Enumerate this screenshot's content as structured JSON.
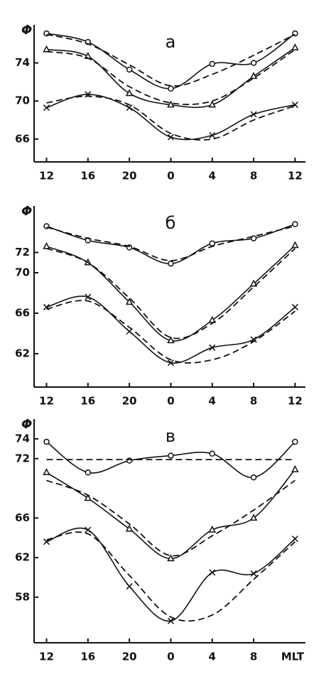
{
  "chart_data": [
    {
      "type": "line",
      "title": "a",
      "ylabel": "Φ'",
      "x": [
        12,
        16,
        20,
        24,
        28,
        32,
        36
      ],
      "xlim": [
        10.8,
        37
      ],
      "xticks": [
        12,
        16,
        20,
        {
          "value": 24,
          "label": "0"
        },
        {
          "value": 28,
          "label": "4"
        },
        {
          "value": 32,
          "label": "8"
        },
        {
          "value": 36,
          "label": "12"
        }
      ],
      "ylim": [
        63.6,
        78
      ],
      "yticks": [
        74,
        70,
        66
      ],
      "series": [
        {
          "color": "#111",
          "marker": "circle",
          "dashed": false,
          "values": [
            77.1,
            76.2,
            73.3,
            71.3,
            73.9,
            74.0,
            77.1
          ]
        },
        {
          "color": "#111",
          "marker": "triangle",
          "dashed": false,
          "values": [
            75.4,
            74.7,
            70.8,
            69.6,
            69.6,
            72.6,
            75.6
          ]
        },
        {
          "color": "#111",
          "marker": "cross",
          "dashed": false,
          "values": [
            69.3,
            70.7,
            69.3,
            66.2,
            66.4,
            68.6,
            69.6
          ]
        },
        {
          "color": "#111",
          "marker": "none",
          "dashed": true,
          "values": [
            77.0,
            76.0,
            73.8,
            71.6,
            72.8,
            74.8,
            77.0
          ]
        },
        {
          "color": "#111",
          "marker": "none",
          "dashed": true,
          "values": [
            75.2,
            74.5,
            71.5,
            69.8,
            70.0,
            72.4,
            75.4
          ]
        },
        {
          "color": "#111",
          "marker": "none",
          "dashed": true,
          "values": [
            69.8,
            70.5,
            69.6,
            66.6,
            66.0,
            68.0,
            69.5
          ]
        }
      ]
    },
    {
      "type": "line",
      "title": "б",
      "ylabel": "Φ'",
      "x": [
        12,
        16,
        20,
        24,
        28,
        32,
        36
      ],
      "xlim": [
        10.8,
        37
      ],
      "xticks": [
        12,
        16,
        20,
        {
          "value": 24,
          "label": "0"
        },
        {
          "value": 28,
          "label": "4"
        },
        {
          "value": 32,
          "label": "8"
        },
        {
          "value": 36,
          "label": "12"
        }
      ],
      "ylim": [
        58.7,
        76.6
      ],
      "yticks": [
        72,
        70,
        66,
        62
      ],
      "series": [
        {
          "color": "#111",
          "marker": "circle",
          "dashed": false,
          "values": [
            74.6,
            73.2,
            72.5,
            70.9,
            72.9,
            73.4,
            74.8
          ]
        },
        {
          "color": "#111",
          "marker": "triangle",
          "dashed": false,
          "values": [
            72.6,
            71.0,
            67.1,
            63.3,
            65.3,
            68.9,
            72.7
          ]
        },
        {
          "color": "#111",
          "marker": "cross",
          "dashed": false,
          "values": [
            66.6,
            67.6,
            64.2,
            61.1,
            62.6,
            63.4,
            66.6
          ]
        },
        {
          "color": "#111",
          "marker": "none",
          "dashed": true,
          "values": [
            74.5,
            73.4,
            72.6,
            71.2,
            72.6,
            73.6,
            74.6
          ]
        },
        {
          "color": "#111",
          "marker": "none",
          "dashed": true,
          "values": [
            72.4,
            71.0,
            67.5,
            63.6,
            65.0,
            68.6,
            72.4
          ]
        },
        {
          "color": "#111",
          "marker": "none",
          "dashed": true,
          "values": [
            66.4,
            67.2,
            64.6,
            61.4,
            61.4,
            63.2,
            66.2
          ]
        }
      ]
    },
    {
      "type": "line",
      "title": "в",
      "ylabel": "Φ'",
      "xlabel": "MLT",
      "x": [
        12,
        16,
        20,
        24,
        28,
        32,
        36
      ],
      "xlim": [
        10.8,
        37
      ],
      "xticks": [
        12,
        16,
        20,
        {
          "value": 24,
          "label": "0"
        },
        {
          "value": 28,
          "label": "4"
        },
        {
          "value": 32,
          "label": "8"
        }
      ],
      "ylim": [
        53.4,
        76
      ],
      "yticks": [
        74,
        72,
        66,
        62,
        58
      ],
      "series": [
        {
          "color": "#111",
          "marker": "circle",
          "dashed": false,
          "values": [
            73.7,
            70.6,
            71.8,
            72.3,
            72.5,
            70.1,
            73.7
          ]
        },
        {
          "color": "#111",
          "marker": "triangle",
          "dashed": false,
          "values": [
            70.6,
            68.0,
            64.9,
            61.9,
            64.8,
            66.0,
            70.9
          ]
        },
        {
          "color": "#111",
          "marker": "cross",
          "dashed": false,
          "values": [
            63.6,
            64.8,
            59.1,
            55.6,
            60.5,
            60.4,
            63.9
          ]
        },
        {
          "color": "#111",
          "marker": "none",
          "dashed": true,
          "values": [
            71.9,
            71.9,
            71.9,
            71.9,
            71.9,
            71.9,
            71.9
          ]
        },
        {
          "color": "#111",
          "marker": "none",
          "dashed": true,
          "values": [
            69.8,
            68.3,
            65.4,
            62.2,
            64.2,
            66.8,
            69.8
          ]
        },
        {
          "color": "#111",
          "marker": "none",
          "dashed": true,
          "values": [
            63.8,
            64.4,
            60.2,
            56.0,
            56.2,
            59.8,
            63.6
          ]
        }
      ]
    }
  ]
}
